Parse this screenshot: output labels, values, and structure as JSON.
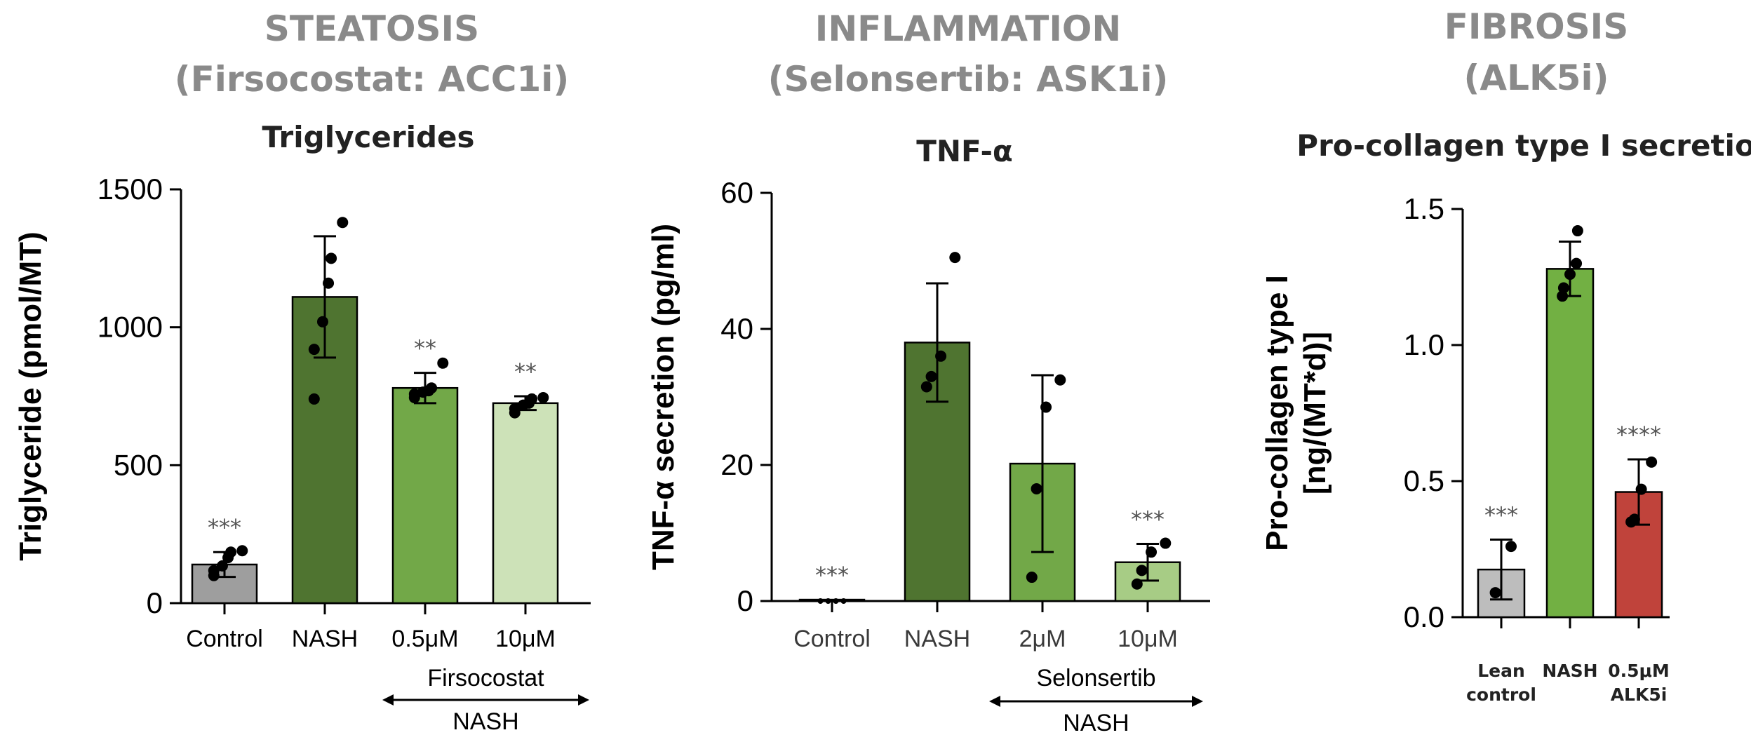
{
  "chart_data": [
    {
      "type": "bar",
      "section_title_lines": [
        "STEATOSIS",
        "(Firsocostat: ACC1i)"
      ],
      "title": "Triglycerides",
      "ylabel": "Triglyceride (pmol/MT)",
      "xlabel": "",
      "ylim": [
        0,
        1500
      ],
      "yticks": [
        0,
        500,
        1000,
        1500
      ],
      "categories": [
        "Control",
        "NASH",
        "0.5μM",
        "10μM"
      ],
      "values": [
        140,
        1110,
        780,
        725
      ],
      "errors": [
        45,
        220,
        55,
        25
      ],
      "colors": [
        "#9e9e9e",
        "#4f7430",
        "#72a848",
        "#cde2b8"
      ],
      "points": [
        [
          100,
          118,
          135,
          165,
          185,
          190
        ],
        [
          740,
          920,
          1020,
          1160,
          1250,
          1380
        ],
        [
          745,
          758,
          765,
          770,
          780,
          870
        ],
        [
          690,
          705,
          718,
          725,
          740,
          745
        ]
      ],
      "significance": [
        "***",
        "",
        "**",
        "**"
      ],
      "group_label": {
        "text": "Firsocostat",
        "sublabel": "NASH",
        "spans": [
          2,
          3
        ]
      },
      "grid": false
    },
    {
      "type": "bar",
      "section_title_lines": [
        "INFLAMMATION",
        "(Selonsertib: ASK1i)"
      ],
      "title": "TNF-α",
      "ylabel": "TNF-α secretion (pg/ml)",
      "xlabel": "",
      "ylim": [
        0,
        60
      ],
      "yticks": [
        0,
        20,
        40,
        60
      ],
      "categories": [
        "Control",
        "NASH",
        "2μM",
        "10μM"
      ],
      "values": [
        0.2,
        38,
        20.2,
        5.7
      ],
      "errors": [
        0,
        8.7,
        13,
        2.7
      ],
      "colors": [
        "#9e9e9e",
        "#4f7430",
        "#72a848",
        "#a7cc85"
      ],
      "points": [
        [
          0,
          0,
          0,
          0
        ],
        [
          31.5,
          33,
          36,
          50.5
        ],
        [
          3.5,
          16.5,
          28.5,
          32.5
        ],
        [
          2.5,
          4.5,
          7.2,
          8.5
        ]
      ],
      "significance": [
        "***",
        "",
        "",
        "***"
      ],
      "group_label": {
        "text": "Selonsertib",
        "sublabel": "NASH",
        "spans": [
          2,
          3
        ]
      },
      "grid": false
    },
    {
      "type": "bar",
      "section_title_lines": [
        "FIBROSIS",
        "(ALK5i)"
      ],
      "title": "Pro-collagen type I secretion",
      "ylabel_lines": [
        "Pro-collagen type I",
        "[ng/(MT*d)]"
      ],
      "xlabel": "",
      "ylim": [
        0,
        1.5
      ],
      "yticks": [
        "0.0",
        "0.5",
        "1.0",
        "1.5"
      ],
      "categories": [
        [
          "Lean",
          "control"
        ],
        [
          "NASH"
        ],
        [
          "0.5μM",
          "ALK5i"
        ]
      ],
      "values": [
        0.175,
        1.28,
        0.46
      ],
      "errors": [
        0.11,
        0.1,
        0.12
      ],
      "colors": [
        "#bdbdbd",
        "#72b043",
        "#c0433b"
      ],
      "points": [
        [
          0.09,
          0.26
        ],
        [
          1.18,
          1.21,
          1.26,
          1.3,
          1.42
        ],
        [
          0.35,
          0.36,
          0.47,
          0.57
        ]
      ],
      "significance": [
        "***",
        "",
        "****"
      ],
      "grid": false
    }
  ]
}
